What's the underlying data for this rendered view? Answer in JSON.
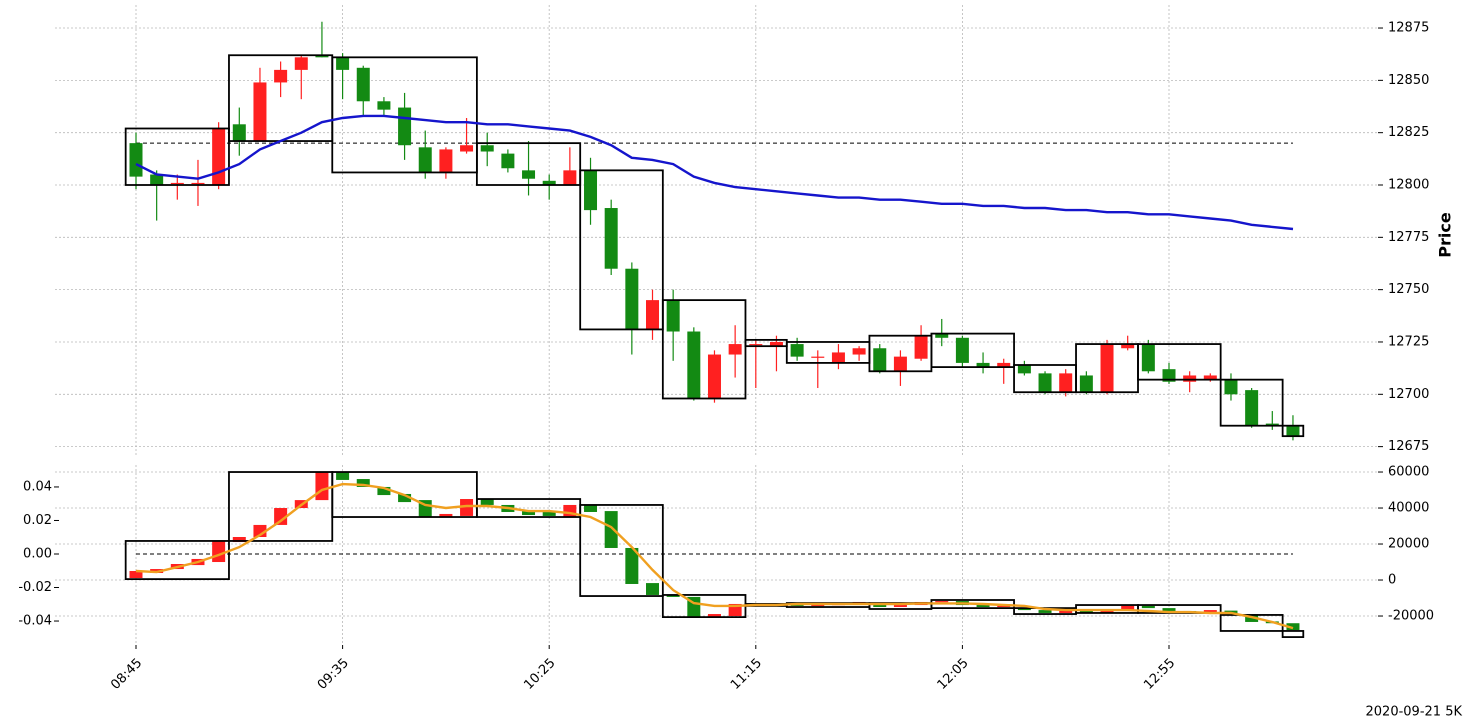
{
  "chart_data": [
    {
      "type": "candlestick",
      "ylabel": "Price",
      "yaxis_side": "right",
      "grid": true,
      "ylim": [
        12671,
        12886
      ],
      "yticks": [
        12675,
        12700,
        12725,
        12750,
        12775,
        12800,
        12825,
        12850,
        12875
      ],
      "candles": {
        "up_color": "#ff2020",
        "down_color": "#138a13",
        "open": [
          12820,
          12805,
          12801,
          12801,
          12800,
          12829,
          12821,
          12849,
          12855,
          12862,
          12861,
          12856,
          12840,
          12837,
          12818,
          12806,
          12816,
          12819,
          12815,
          12807,
          12802,
          12800,
          12807,
          12789,
          12760,
          12731,
          12745,
          12730,
          12698,
          12719,
          12724,
          12723,
          12724,
          12718,
          12715,
          12719,
          12722,
          12711,
          12717,
          12729,
          12727,
          12715,
          12713,
          12714,
          12710,
          12701,
          12709,
          12701,
          12722,
          12724,
          12712,
          12706,
          12707,
          12707,
          12702,
          12686,
          12685
        ],
        "close": [
          12804,
          12800,
          12801,
          12801,
          12827,
          12821,
          12849,
          12855,
          12861,
          12861,
          12855,
          12840,
          12836,
          12819,
          12806,
          12817,
          12819,
          12816,
          12808,
          12803,
          12800,
          12807,
          12788,
          12760,
          12731,
          12745,
          12730,
          12698,
          12719,
          12724,
          12724,
          12725,
          12718,
          12718,
          12720,
          12722,
          12711,
          12718,
          12728,
          12727,
          12715,
          12713,
          12715,
          12710,
          12701,
          12710,
          12701,
          12724,
          12724,
          12711,
          12706,
          12709,
          12709,
          12700,
          12685,
          12685,
          12680
        ],
        "high": [
          12825,
          12807,
          12805,
          12812,
          12830,
          12837,
          12856,
          12859,
          12862,
          12878,
          12863,
          12857,
          12842,
          12844,
          12826,
          12818,
          12832,
          12825,
          12817,
          12821,
          12805,
          12818,
          12813,
          12793,
          12763,
          12750,
          12750,
          12732,
          12721,
          12733,
          12726,
          12728,
          12727,
          12721,
          12724,
          12723,
          12724,
          12721,
          12733,
          12736,
          12728,
          12720,
          12717,
          12716,
          12711,
          12712,
          12711,
          12726,
          12728,
          12726,
          12715,
          12711,
          12710,
          12710,
          12703,
          12692,
          12690
        ],
        "low": [
          12798,
          12783,
          12793,
          12790,
          12798,
          12814,
          12821,
          12842,
          12841,
          12861,
          12841,
          12833,
          12833,
          12812,
          12803,
          12803,
          12815,
          12809,
          12806,
          12795,
          12793,
          12800,
          12781,
          12757,
          12719,
          12726,
          12716,
          12697,
          12696,
          12708,
          12703,
          12711,
          12716,
          12703,
          12712,
          12716,
          12710,
          12704,
          12716,
          12723,
          12713,
          12710,
          12705,
          12709,
          12700,
          12699,
          12700,
          12700,
          12721,
          12710,
          12705,
          12701,
          12706,
          12697,
          12684,
          12683,
          12678
        ]
      },
      "line": {
        "color": "#1515cc",
        "values": [
          12810,
          12805,
          12804,
          12803,
          12806,
          12810,
          12817,
          12821,
          12825,
          12830,
          12832,
          12833,
          12833,
          12832,
          12831,
          12830,
          12830,
          12829,
          12829,
          12828,
          12827,
          12826,
          12823,
          12819,
          12813,
          12812,
          12810,
          12804,
          12801,
          12799,
          12798,
          12797,
          12796,
          12795,
          12794,
          12794,
          12793,
          12793,
          12792,
          12791,
          12791,
          12790,
          12790,
          12789,
          12789,
          12788,
          12788,
          12787,
          12787,
          12786,
          12786,
          12785,
          12784,
          12783,
          12781,
          12780,
          12779
        ]
      },
      "hline": {
        "value": 12820
      },
      "boxes": [
        {
          "start": 0,
          "end": 4,
          "top": 12827,
          "bottom": 12800
        },
        {
          "start": 5,
          "end": 9,
          "top": 12862,
          "bottom": 12821
        },
        {
          "start": 10,
          "end": 16,
          "top": 12861,
          "bottom": 12806
        },
        {
          "start": 17,
          "end": 21,
          "top": 12820,
          "bottom": 12800
        },
        {
          "start": 22,
          "end": 25,
          "top": 12807,
          "bottom": 12731
        },
        {
          "start": 26,
          "end": 29,
          "top": 12745,
          "bottom": 12698
        },
        {
          "start": 30,
          "end": 31,
          "top": 12726,
          "bottom": 12723
        },
        {
          "start": 32,
          "end": 35,
          "top": 12725,
          "bottom": 12715
        },
        {
          "start": 36,
          "end": 38,
          "top": 12728,
          "bottom": 12711
        },
        {
          "start": 39,
          "end": 42,
          "top": 12729,
          "bottom": 12713
        },
        {
          "start": 43,
          "end": 45,
          "top": 12714,
          "bottom": 12701
        },
        {
          "start": 46,
          "end": 48,
          "top": 12724,
          "bottom": 12701
        },
        {
          "start": 49,
          "end": 52,
          "top": 12724,
          "bottom": 12707
        },
        {
          "start": 53,
          "end": 55,
          "top": 12707,
          "bottom": 12685
        },
        {
          "start": 56,
          "end": 56,
          "top": 12685,
          "bottom": 12680
        }
      ]
    },
    {
      "type": "candlestick",
      "xlabel": "2020-09-21 5K",
      "yaxis_side": "left",
      "grid": true,
      "categories": [
        "08:45",
        null,
        null,
        null,
        null,
        null,
        null,
        null,
        null,
        null,
        "09:35",
        null,
        null,
        null,
        null,
        null,
        null,
        null,
        null,
        null,
        "10:25",
        null,
        null,
        null,
        null,
        null,
        null,
        null,
        null,
        null,
        "11:15",
        null,
        null,
        null,
        null,
        null,
        null,
        null,
        null,
        null,
        "12:05",
        null,
        null,
        null,
        null,
        null,
        null,
        null,
        null,
        null,
        "12:55",
        null,
        null,
        null,
        null,
        null,
        null
      ],
      "ylim": [
        -0.0543,
        0.0531
      ],
      "yticks": [
        -0.04,
        -0.02,
        {
          "value": 0,
          "label": "0.00"
        },
        0.02,
        0.04
      ],
      "y2lim": [
        -36100,
        63900
      ],
      "y2ticks": [
        -20000,
        0,
        20000,
        40000,
        60000
      ],
      "candles": {
        "axis": "y2",
        "up_color": "#ff2020",
        "down_color": "#138a13",
        "open": [
          1100,
          3900,
          6100,
          8300,
          10000,
          21100,
          23900,
          30600,
          40000,
          44400,
          60000,
          56100,
          51700,
          47800,
          44400,
          35000,
          35600,
          45000,
          41700,
          38300,
          37800,
          35000,
          41700,
          38300,
          17800,
          -1700,
          -8300,
          -9400,
          -20600,
          -20000,
          -13300,
          -14400,
          -13300,
          -14400,
          -14000,
          -12800,
          -13300,
          -15000,
          -13900,
          -12200,
          -11700,
          -13900,
          -15000,
          -15600,
          -16700,
          -18300,
          -17200,
          -18300,
          -17200,
          -14400,
          -15600,
          -17200,
          -17800,
          -17000,
          -19000,
          -23000,
          -24000
        ],
        "close": [
          5000,
          6100,
          8900,
          11700,
          21700,
          23900,
          30600,
          40000,
          44400,
          60000,
          55600,
          51700,
          47200,
          43300,
          35000,
          36700,
          45000,
          41700,
          37800,
          36100,
          35600,
          41700,
          37800,
          17800,
          -2200,
          -8300,
          -9400,
          -20600,
          -18900,
          -13300,
          -14400,
          -13300,
          -14400,
          -13900,
          -12800,
          -12200,
          -15000,
          -13900,
          -12200,
          -11700,
          -13900,
          -15000,
          -14400,
          -16700,
          -18300,
          -17200,
          -18300,
          -17200,
          -14400,
          -15600,
          -17200,
          -17800,
          -16700,
          -19000,
          -23300,
          -24000,
          -27800
        ]
      },
      "line": {
        "axis": "y2",
        "color": "#f0a020",
        "values": [
          5000,
          4400,
          7200,
          10000,
          13900,
          18300,
          25000,
          32800,
          41700,
          50000,
          53300,
          52800,
          51100,
          47200,
          41700,
          40000,
          41100,
          41100,
          40000,
          38300,
          38300,
          37200,
          35000,
          29400,
          18300,
          5600,
          -5600,
          -12800,
          -14400,
          -14400,
          -13900,
          -13900,
          -13300,
          -13300,
          -13300,
          -13300,
          -13300,
          -13300,
          -13000,
          -13000,
          -13000,
          -13300,
          -13900,
          -14400,
          -16100,
          -16700,
          -16700,
          -16700,
          -16700,
          -17200,
          -17800,
          -17800,
          -18300,
          -18300,
          -20600,
          -23300,
          -26700
        ]
      },
      "hline": {
        "value": 0
      },
      "boxes": [
        {
          "start": 0,
          "end": 4,
          "top": 21700,
          "bottom": 500
        },
        {
          "start": 5,
          "end": 9,
          "top": 60000,
          "bottom": 21700
        },
        {
          "start": 10,
          "end": 16,
          "top": 60000,
          "bottom": 35000
        },
        {
          "start": 17,
          "end": 21,
          "top": 45000,
          "bottom": 35000
        },
        {
          "start": 22,
          "end": 25,
          "top": 41700,
          "bottom": -8900
        },
        {
          "start": 26,
          "end": 29,
          "top": -8300,
          "bottom": -20600
        },
        {
          "start": 30,
          "end": 31,
          "top": -13300,
          "bottom": -14400
        },
        {
          "start": 32,
          "end": 35,
          "top": -12800,
          "bottom": -15000
        },
        {
          "start": 36,
          "end": 38,
          "top": -12800,
          "bottom": -16100
        },
        {
          "start": 39,
          "end": 42,
          "top": -11100,
          "bottom": -15600
        },
        {
          "start": 43,
          "end": 45,
          "top": -15600,
          "bottom": -18900
        },
        {
          "start": 46,
          "end": 48,
          "top": -13900,
          "bottom": -18300
        },
        {
          "start": 49,
          "end": 52,
          "top": -13900,
          "bottom": -18300
        },
        {
          "start": 53,
          "end": 55,
          "top": -19400,
          "bottom": -28300
        },
        {
          "start": 56,
          "end": 56,
          "top": -28300,
          "bottom": -31700
        }
      ],
      "boxes_axis": "y2"
    }
  ]
}
